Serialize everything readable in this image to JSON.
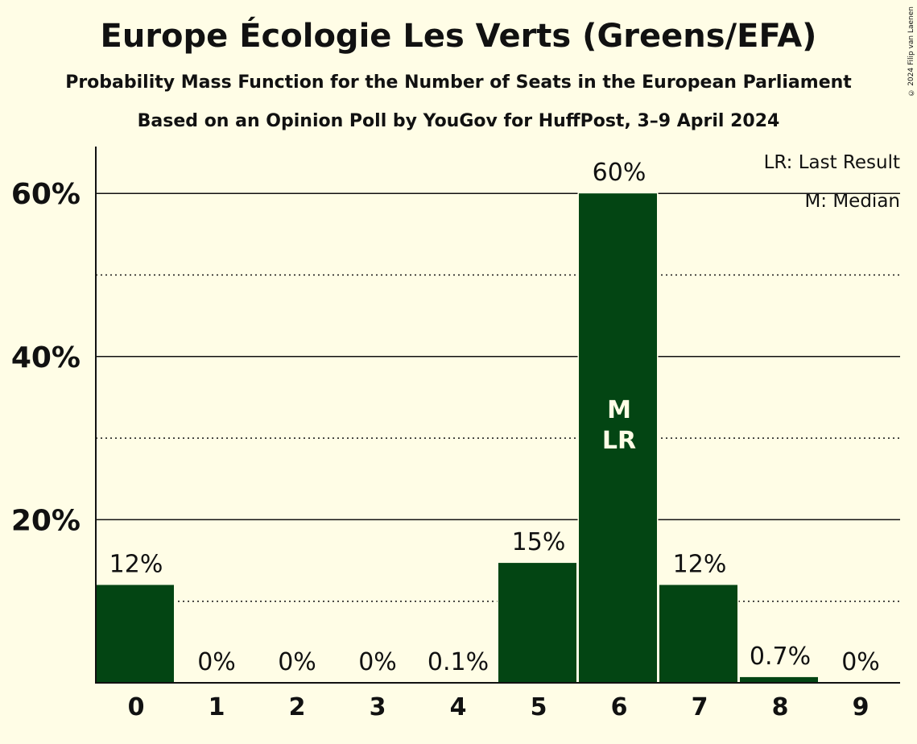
{
  "title": "Europe Écologie Les Verts (Greens/EFA)",
  "subtitle": "Probability Mass Function for the Number of Seats in the European Parliament",
  "subtitle2": "Based on an Opinion Poll by YouGov for HuffPost, 3–9 April 2024",
  "copyright": "© 2024 Filip van Laenen",
  "legend": {
    "last_result": "LR: Last Result",
    "median": "M: Median"
  },
  "colors": {
    "background": "#fffde6",
    "bar": "#034513",
    "text": "#111111"
  },
  "chart_data": {
    "type": "bar",
    "categories": [
      "0",
      "1",
      "2",
      "3",
      "4",
      "5",
      "6",
      "7",
      "8",
      "9"
    ],
    "values": [
      12,
      0,
      0,
      0,
      0.1,
      14.7,
      60,
      12,
      0.7,
      0
    ],
    "data_labels": [
      "12%",
      "0%",
      "0%",
      "0%",
      "0.1%",
      "15%",
      "60%",
      "12%",
      "0.7%",
      "0%"
    ],
    "y_ticks": [
      20,
      40,
      60
    ],
    "y_tick_labels": [
      "20%",
      "40%",
      "60%"
    ],
    "y_minor_ticks": [
      10,
      30,
      50
    ],
    "ylim": [
      0,
      65.5
    ],
    "bar_annotations": [
      {
        "category": "6",
        "lines": [
          "M",
          "LR"
        ]
      }
    ],
    "xlabel": "",
    "ylabel": ""
  }
}
